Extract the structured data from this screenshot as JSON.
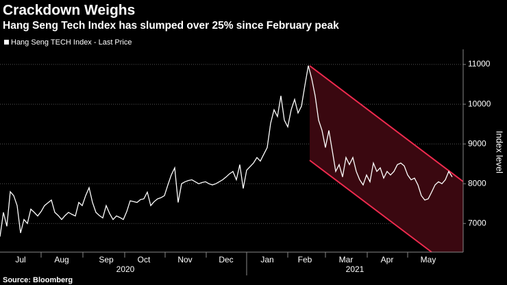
{
  "chart_data": {
    "type": "line",
    "title": "Crackdown Weighs",
    "subtitle": "Hang Seng Tech Index has slumped over 25% since February peak",
    "source": "Source: Bloomberg",
    "y_label": "Index level",
    "year_labels": [
      "2020",
      "2021"
    ],
    "categories": [
      null,
      null,
      null,
      null,
      null,
      null,
      "Jul",
      null,
      null,
      null,
      null,
      null,
      null,
      null,
      null,
      null,
      null,
      null,
      "Aug",
      null,
      null,
      null,
      null,
      null,
      null,
      null,
      null,
      null,
      null,
      null,
      null,
      "Sep",
      null,
      null,
      null,
      null,
      null,
      null,
      null,
      null,
      null,
      null,
      "Oct",
      null,
      null,
      null,
      null,
      null,
      null,
      null,
      null,
      null,
      null,
      null,
      "Nov",
      null,
      null,
      null,
      null,
      null,
      null,
      null,
      null,
      null,
      null,
      null,
      "Dec",
      null,
      null,
      null,
      null,
      null,
      null,
      null,
      null,
      null,
      null,
      null,
      "Jan",
      null,
      null,
      null,
      null,
      null,
      null,
      null,
      null,
      null,
      null,
      "Feb",
      null,
      null,
      null,
      null,
      null,
      null,
      null,
      null,
      null,
      null,
      null,
      "Mar",
      null,
      null,
      null,
      null,
      null,
      null,
      null,
      null,
      null,
      null,
      null,
      "Apr",
      null,
      null,
      null,
      null,
      null,
      null,
      null,
      null,
      null,
      null,
      null,
      "May",
      null,
      null,
      null,
      null,
      null,
      null,
      null
    ],
    "series": [
      {
        "name": "Hang Seng TECH Index - Last Price",
        "color": "#ffffff",
        "values": [
          6670,
          7280,
          6930,
          7800,
          7700,
          7450,
          6760,
          7100,
          7000,
          7360,
          7280,
          7190,
          7300,
          7450,
          7520,
          7590,
          7280,
          7200,
          7100,
          7200,
          7280,
          7230,
          7190,
          7530,
          7450,
          7700,
          7900,
          7530,
          7280,
          7200,
          7140,
          7450,
          7250,
          7100,
          7190,
          7150,
          7100,
          7300,
          7570,
          7550,
          7530,
          7600,
          7620,
          7790,
          7450,
          7550,
          7620,
          7650,
          7700,
          7970,
          8220,
          8400,
          7530,
          8000,
          8050,
          8080,
          8100,
          8050,
          8000,
          8030,
          8050,
          8000,
          7970,
          8000,
          8050,
          8100,
          8170,
          8250,
          8310,
          8100,
          8480,
          7880,
          8340,
          8430,
          8520,
          8660,
          8570,
          8740,
          8910,
          9520,
          9860,
          9690,
          10210,
          9600,
          9430,
          9860,
          10120,
          9780,
          9950,
          10470,
          10970,
          10640,
          10210,
          9600,
          9340,
          8910,
          9340,
          8830,
          8310,
          8480,
          8170,
          8660,
          8480,
          8660,
          8310,
          8100,
          7970,
          8220,
          8050,
          8520,
          8310,
          8400,
          8140,
          8310,
          8220,
          8310,
          8480,
          8520,
          8450,
          8220,
          8100,
          8140,
          7970,
          7700,
          7590,
          7620,
          7790,
          7970,
          8050,
          8000,
          8100,
          8310,
          8170
        ]
      }
    ],
    "ylim": [
      6280,
      11380
    ],
    "yticks": [
      7000,
      8000,
      9000,
      10000,
      11000
    ],
    "grid": true,
    "y_axis_side": "right"
  }
}
